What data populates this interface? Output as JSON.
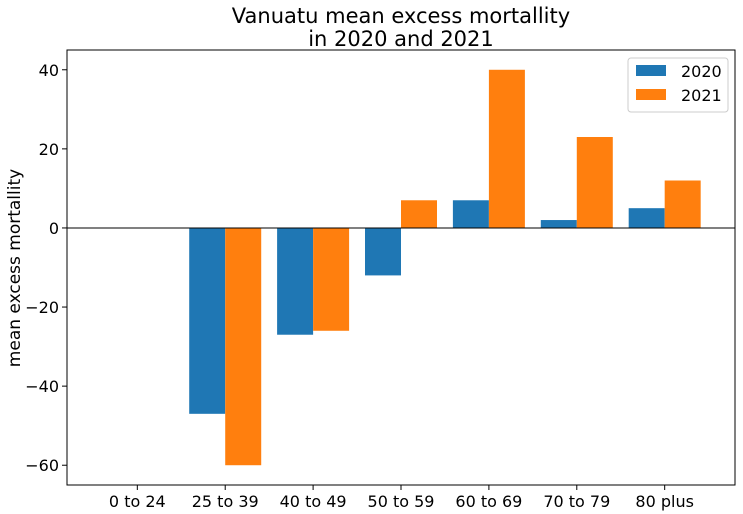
{
  "chart_data": {
    "type": "bar",
    "title_lines": [
      "Vanuatu mean excess mortallity",
      "in 2020 and 2021"
    ],
    "xlabel": "",
    "ylabel": "mean excess mortallity",
    "categories": [
      "0 to 24",
      "25 to 39",
      "40 to 49",
      "50 to 59",
      "60 to 69",
      "70 to 79",
      "80 plus"
    ],
    "series": [
      {
        "name": "2020",
        "color": "#1f77b4",
        "values": [
          0,
          -47,
          -27,
          -12,
          7,
          2,
          5
        ]
      },
      {
        "name": "2021",
        "color": "#ff7f0e",
        "values": [
          0,
          -60,
          -26,
          7,
          40,
          23,
          12
        ]
      }
    ],
    "ylim": [
      -65,
      45
    ],
    "yticks": [
      -60,
      -40,
      -20,
      0,
      20,
      40
    ],
    "ytick_labels": [
      "−60",
      "−40",
      "−20",
      "0",
      "20",
      "40"
    ],
    "zero_line": true,
    "grid": false,
    "legend_position": "top-right"
  }
}
